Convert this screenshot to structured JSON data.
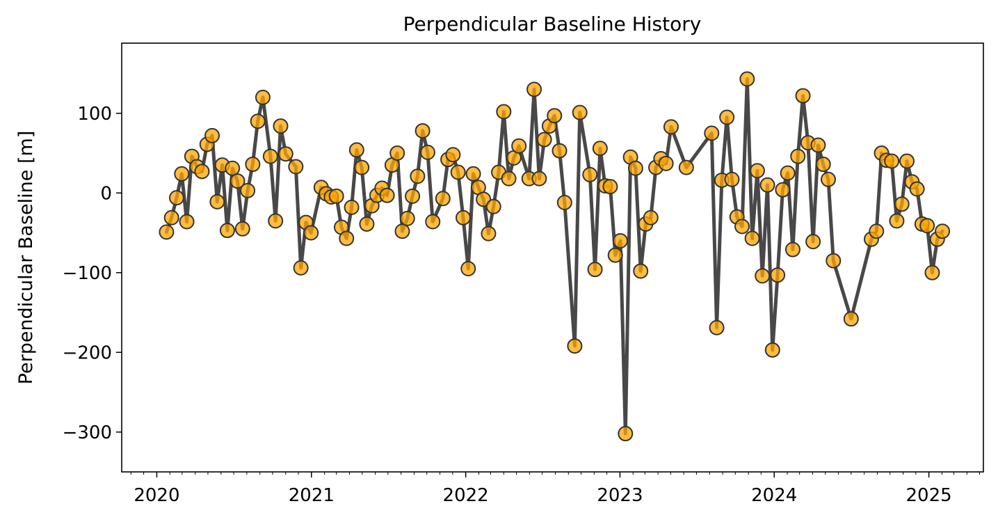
{
  "chart_data": {
    "type": "line",
    "title": "Perpendicular Baseline History",
    "xlabel": "",
    "ylabel": "Perpendicular Baseline [m]",
    "x_axis": "date",
    "xlim": [
      "2019-10-10",
      "2025-05-10"
    ],
    "ylim": [
      -350,
      188
    ],
    "x_ticks": [
      {
        "date": "2020-01-01",
        "label": "2020"
      },
      {
        "date": "2021-01-01",
        "label": "2021"
      },
      {
        "date": "2022-01-01",
        "label": "2022"
      },
      {
        "date": "2023-01-01",
        "label": "2023"
      },
      {
        "date": "2024-01-01",
        "label": "2024"
      },
      {
        "date": "2025-01-01",
        "label": "2025"
      }
    ],
    "y_ticks": [
      {
        "value": 100,
        "label": "100"
      },
      {
        "value": 0,
        "label": "0"
      },
      {
        "value": -100,
        "label": "−100"
      },
      {
        "value": -200,
        "label": "−200"
      },
      {
        "value": -300,
        "label": "−300"
      }
    ],
    "grid": false,
    "line_color": "#484848",
    "marker_color": "#FFA500",
    "marker_edge_color": "#333333",
    "series": [
      {
        "points": [
          [
            "2020-01-24",
            -49
          ],
          [
            "2020-02-05",
            -31
          ],
          [
            "2020-02-17",
            -6
          ],
          [
            "2020-02-29",
            24
          ],
          [
            "2020-03-12",
            -36
          ],
          [
            "2020-03-24",
            46
          ],
          [
            "2020-04-05",
            33
          ],
          [
            "2020-04-17",
            27
          ],
          [
            "2020-04-29",
            61
          ],
          [
            "2020-05-11",
            72
          ],
          [
            "2020-05-23",
            -11
          ],
          [
            "2020-06-04",
            35
          ],
          [
            "2020-06-16",
            -47
          ],
          [
            "2020-06-28",
            31
          ],
          [
            "2020-07-10",
            15
          ],
          [
            "2020-07-22",
            -45
          ],
          [
            "2020-08-03",
            3
          ],
          [
            "2020-08-15",
            36
          ],
          [
            "2020-08-27",
            90
          ],
          [
            "2020-09-08",
            120
          ],
          [
            "2020-09-26",
            46
          ],
          [
            "2020-10-08",
            -35
          ],
          [
            "2020-10-20",
            84
          ],
          [
            "2020-11-01",
            49
          ],
          [
            "2020-11-25",
            33
          ],
          [
            "2020-12-07",
            -94
          ],
          [
            "2020-12-19",
            -37
          ],
          [
            "2020-12-31",
            -50
          ],
          [
            "2021-01-24",
            7
          ],
          [
            "2021-02-05",
            -1
          ],
          [
            "2021-02-17",
            -5
          ],
          [
            "2021-03-01",
            -4
          ],
          [
            "2021-03-13",
            -43
          ],
          [
            "2021-03-25",
            -57
          ],
          [
            "2021-04-06",
            -18
          ],
          [
            "2021-04-18",
            54
          ],
          [
            "2021-04-30",
            32
          ],
          [
            "2021-05-12",
            -39
          ],
          [
            "2021-05-24",
            -16
          ],
          [
            "2021-06-05",
            -3
          ],
          [
            "2021-06-17",
            6
          ],
          [
            "2021-06-29",
            -3
          ],
          [
            "2021-07-11",
            35
          ],
          [
            "2021-07-23",
            50
          ],
          [
            "2021-08-04",
            -48
          ],
          [
            "2021-08-16",
            -32
          ],
          [
            "2021-08-28",
            -4
          ],
          [
            "2021-09-09",
            21
          ],
          [
            "2021-09-21",
            78
          ],
          [
            "2021-10-03",
            51
          ],
          [
            "2021-10-15",
            -36
          ],
          [
            "2021-11-08",
            -7
          ],
          [
            "2021-11-20",
            42
          ],
          [
            "2021-12-02",
            48
          ],
          [
            "2021-12-14",
            26
          ],
          [
            "2021-12-26",
            -31
          ],
          [
            "2022-01-07",
            -95
          ],
          [
            "2022-01-19",
            24
          ],
          [
            "2022-01-31",
            7
          ],
          [
            "2022-02-12",
            -8
          ],
          [
            "2022-02-24",
            -51
          ],
          [
            "2022-03-08",
            -17
          ],
          [
            "2022-03-20",
            26
          ],
          [
            "2022-04-01",
            102
          ],
          [
            "2022-04-13",
            18
          ],
          [
            "2022-04-25",
            44
          ],
          [
            "2022-05-07",
            59
          ],
          [
            "2022-05-31",
            18
          ],
          [
            "2022-06-12",
            130
          ],
          [
            "2022-06-24",
            18
          ],
          [
            "2022-07-06",
            67
          ],
          [
            "2022-07-18",
            84
          ],
          [
            "2022-07-30",
            97
          ],
          [
            "2022-08-11",
            53
          ],
          [
            "2022-08-23",
            -12
          ],
          [
            "2022-09-16",
            -192
          ],
          [
            "2022-09-28",
            101
          ],
          [
            "2022-10-22",
            23
          ],
          [
            "2022-11-03",
            -96
          ],
          [
            "2022-11-15",
            56
          ],
          [
            "2022-11-27",
            9
          ],
          [
            "2022-12-09",
            8
          ],
          [
            "2022-12-21",
            -78
          ],
          [
            "2023-01-02",
            -60
          ],
          [
            "2023-01-14",
            -302
          ],
          [
            "2023-01-26",
            45
          ],
          [
            "2023-02-07",
            31
          ],
          [
            "2023-02-19",
            -98
          ],
          [
            "2023-03-03",
            -39
          ],
          [
            "2023-03-15",
            -31
          ],
          [
            "2023-03-27",
            32
          ],
          [
            "2023-04-08",
            43
          ],
          [
            "2023-04-20",
            37
          ],
          [
            "2023-05-02",
            83
          ],
          [
            "2023-06-07",
            32
          ],
          [
            "2023-08-06",
            75
          ],
          [
            "2023-08-18",
            -169
          ],
          [
            "2023-08-30",
            16
          ],
          [
            "2023-09-11",
            95
          ],
          [
            "2023-09-23",
            17
          ],
          [
            "2023-10-05",
            -30
          ],
          [
            "2023-10-17",
            -42
          ],
          [
            "2023-10-29",
            143
          ],
          [
            "2023-11-10",
            -57
          ],
          [
            "2023-11-22",
            28
          ],
          [
            "2023-12-04",
            -104
          ],
          [
            "2023-12-16",
            10
          ],
          [
            "2023-12-28",
            -197
          ],
          [
            "2024-01-09",
            -103
          ],
          [
            "2024-01-21",
            4
          ],
          [
            "2024-02-02",
            25
          ],
          [
            "2024-02-14",
            -71
          ],
          [
            "2024-02-26",
            46
          ],
          [
            "2024-03-09",
            122
          ],
          [
            "2024-03-21",
            63
          ],
          [
            "2024-04-02",
            -61
          ],
          [
            "2024-04-14",
            60
          ],
          [
            "2024-04-26",
            36
          ],
          [
            "2024-05-08",
            17
          ],
          [
            "2024-05-20",
            -85
          ],
          [
            "2024-07-01",
            -158
          ],
          [
            "2024-08-18",
            -58
          ],
          [
            "2024-08-30",
            -48
          ],
          [
            "2024-09-11",
            50
          ],
          [
            "2024-09-23",
            41
          ],
          [
            "2024-10-05",
            40
          ],
          [
            "2024-10-17",
            -35
          ],
          [
            "2024-10-29",
            -14
          ],
          [
            "2024-11-10",
            40
          ],
          [
            "2024-11-22",
            14
          ],
          [
            "2024-12-04",
            5
          ],
          [
            "2024-12-16",
            -39
          ],
          [
            "2024-12-28",
            -41
          ],
          [
            "2025-01-09",
            -100
          ],
          [
            "2025-01-21",
            -58
          ],
          [
            "2025-02-02",
            -48
          ]
        ]
      }
    ]
  }
}
